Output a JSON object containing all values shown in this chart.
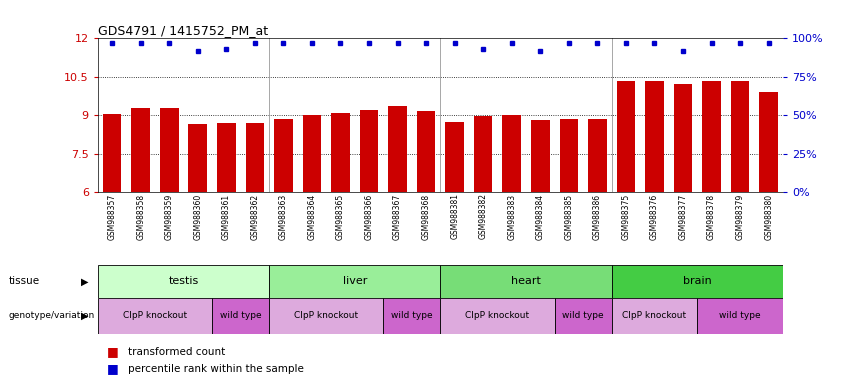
{
  "title": "GDS4791 / 1415752_PM_at",
  "samples": [
    "GSM988357",
    "GSM988358",
    "GSM988359",
    "GSM988360",
    "GSM988361",
    "GSM988362",
    "GSM988363",
    "GSM988364",
    "GSM988365",
    "GSM988366",
    "GSM988367",
    "GSM988368",
    "GSM988381",
    "GSM988382",
    "GSM988383",
    "GSM988384",
    "GSM988385",
    "GSM988386",
    "GSM988375",
    "GSM988376",
    "GSM988377",
    "GSM988378",
    "GSM988379",
    "GSM988380"
  ],
  "bar_values": [
    9.05,
    9.3,
    9.3,
    8.65,
    8.7,
    8.7,
    8.85,
    9.0,
    9.1,
    9.2,
    9.35,
    9.15,
    8.75,
    8.95,
    9.0,
    8.8,
    8.85,
    8.85,
    10.35,
    10.35,
    10.2,
    10.35,
    10.35,
    9.9
  ],
  "percentile_values": [
    97,
    97,
    97,
    92,
    93,
    97,
    97,
    97,
    97,
    97,
    97,
    97,
    97,
    93,
    97,
    92,
    97,
    97,
    97,
    97,
    92,
    97,
    97,
    97
  ],
  "ylim_left": [
    6,
    12
  ],
  "ylim_right": [
    0,
    100
  ],
  "yticks_left": [
    6,
    7.5,
    9,
    10.5,
    12
  ],
  "yticks_right": [
    0,
    25,
    50,
    75,
    100
  ],
  "bar_color": "#cc0000",
  "dot_color": "#0000cc",
  "tissues": [
    {
      "label": "testis",
      "start": 0,
      "end": 6,
      "color": "#ccffcc"
    },
    {
      "label": "liver",
      "start": 6,
      "end": 12,
      "color": "#99ee99"
    },
    {
      "label": "heart",
      "start": 12,
      "end": 18,
      "color": "#77dd77"
    },
    {
      "label": "brain",
      "start": 18,
      "end": 24,
      "color": "#44cc44"
    }
  ],
  "genotypes": [
    {
      "label": "ClpP knockout",
      "start": 0,
      "end": 4,
      "color": "#ddaadd"
    },
    {
      "label": "wild type",
      "start": 4,
      "end": 6,
      "color": "#cc66cc"
    },
    {
      "label": "ClpP knockout",
      "start": 6,
      "end": 10,
      "color": "#ddaadd"
    },
    {
      "label": "wild type",
      "start": 10,
      "end": 12,
      "color": "#cc66cc"
    },
    {
      "label": "ClpP knockout",
      "start": 12,
      "end": 16,
      "color": "#ddaadd"
    },
    {
      "label": "wild type",
      "start": 16,
      "end": 18,
      "color": "#cc66cc"
    },
    {
      "label": "ClpP knockout",
      "start": 18,
      "end": 21,
      "color": "#ddaadd"
    },
    {
      "label": "wild type",
      "start": 21,
      "end": 24,
      "color": "#cc66cc"
    }
  ],
  "legend_items": [
    {
      "label": "transformed count",
      "color": "#cc0000"
    },
    {
      "label": "percentile rank within the sample",
      "color": "#0000cc"
    }
  ],
  "bg_color": "#ffffff",
  "grid_color": "#000000",
  "separator_color": "#aaaaaa"
}
